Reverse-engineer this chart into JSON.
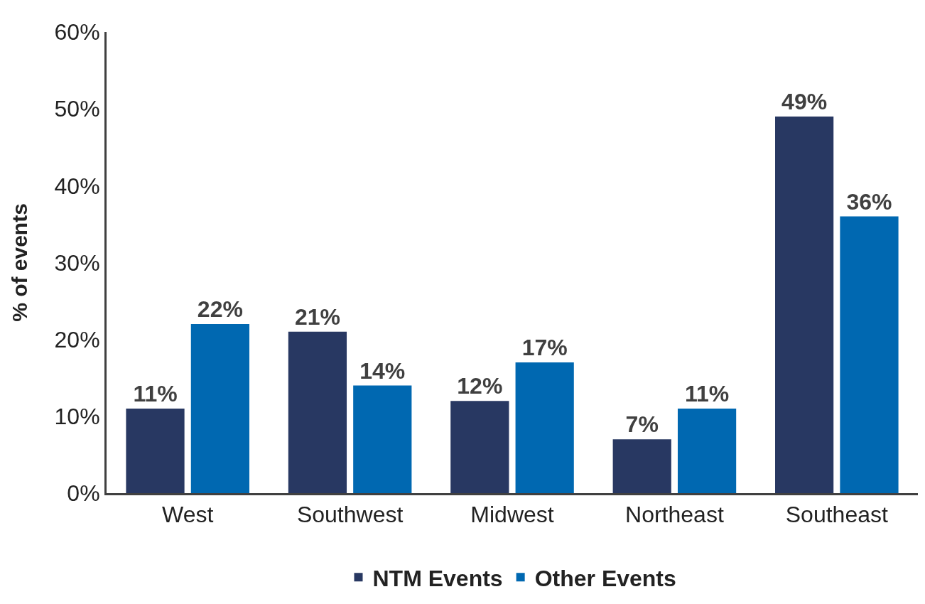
{
  "chart_data": {
    "type": "bar",
    "ylabel": "% of events",
    "categories": [
      "West",
      "Southwest",
      "Midwest",
      "Northeast",
      "Southeast"
    ],
    "series": [
      {
        "name": "NTM Events",
        "color": "#283862",
        "values": [
          11,
          21,
          12,
          7,
          49
        ],
        "value_labels": [
          "11%",
          "21%",
          "12%",
          "7%",
          "49%"
        ]
      },
      {
        "name": "Other Events",
        "color": "#0068b1",
        "values": [
          22,
          14,
          17,
          11,
          36
        ],
        "value_labels": [
          "22%",
          "14%",
          "17%",
          "11%",
          "36%"
        ]
      }
    ],
    "ylim": [
      0,
      60
    ],
    "yticks": [
      {
        "value": 0,
        "label": "0%"
      },
      {
        "value": 10,
        "label": "10%"
      },
      {
        "value": 20,
        "label": "20%"
      },
      {
        "value": 30,
        "label": "30%"
      },
      {
        "value": 40,
        "label": "40%"
      },
      {
        "value": 50,
        "label": "50%"
      },
      {
        "value": 60,
        "label": "60%"
      }
    ],
    "grid": false,
    "legend": "bottom"
  }
}
